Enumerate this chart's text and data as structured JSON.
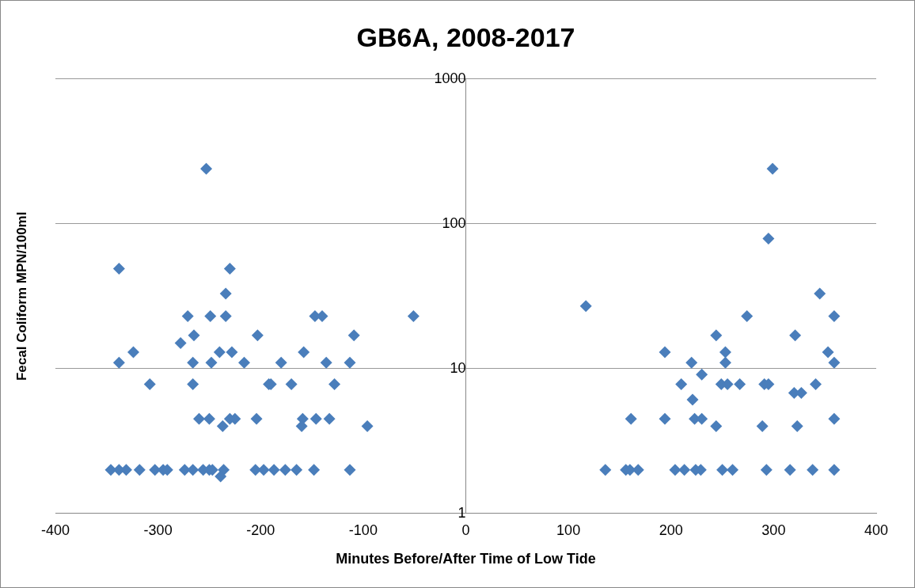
{
  "chart_data": {
    "type": "scatter",
    "title": "GB6A, 2008-2017",
    "xlabel": "Minutes Before/After Time of Low Tide",
    "ylabel": "Fecal Coliform MPN/100ml",
    "xlim": [
      -400,
      400
    ],
    "xticks": [
      -400,
      -300,
      -200,
      -100,
      0,
      100,
      200,
      300,
      400
    ],
    "ylim": [
      1,
      1000
    ],
    "yticks": [
      1,
      10,
      100,
      1000
    ],
    "log": "y",
    "grid": "y",
    "legend": false,
    "marker": "diamond",
    "series": [
      {
        "color": "#4a7ebb",
        "x": [
          -346,
          -338,
          -331,
          -318,
          -303,
          -295,
          -291,
          -274,
          -266,
          -256,
          -250,
          -247,
          -236,
          -205,
          -197,
          -187,
          -176,
          -165,
          -148,
          -113,
          -239,
          -260,
          -250,
          -230,
          -225,
          -204,
          -237,
          -159,
          -146,
          -133,
          -160,
          -96,
          -308,
          -266,
          -192,
          -190,
          -170,
          -128,
          -338,
          -266,
          -248,
          -216,
          -180,
          -136,
          -113,
          -324,
          -240,
          -228,
          -158,
          -278,
          -265,
          -203,
          -109,
          -271,
          -249,
          -234,
          -147,
          -140,
          -51,
          -234,
          -338,
          -230,
          -253,
          299,
          295,
          345,
          117,
          274,
          359,
          244,
          321,
          194,
          253,
          353,
          220,
          253,
          359,
          230,
          210,
          249,
          255,
          267,
          291,
          295,
          341,
          320,
          327,
          221,
          161,
          194,
          223,
          230,
          359,
          244,
          289,
          323,
          136,
          156,
          160,
          168,
          204,
          213,
          224,
          229,
          250,
          260,
          293,
          316,
          338,
          359
        ],
        "values": [
          2,
          2,
          2,
          2,
          2,
          2,
          2,
          2,
          2,
          2,
          2,
          2,
          2,
          2,
          2,
          2,
          2,
          2,
          2,
          2,
          1.8,
          4.5,
          4.5,
          4.5,
          4.5,
          4.5,
          4,
          4.5,
          4.5,
          4.5,
          4,
          4,
          7.8,
          7.8,
          7.8,
          7.8,
          7.8,
          7.8,
          11,
          11,
          11,
          11,
          11,
          11,
          11,
          13,
          13,
          13,
          13,
          15,
          17,
          17,
          17,
          23,
          23,
          23,
          23,
          23,
          23,
          33,
          49,
          49,
          240,
          240,
          79,
          33,
          27,
          23,
          23,
          17,
          17,
          13,
          13,
          13,
          11,
          11,
          11,
          9.1,
          7.8,
          7.8,
          7.8,
          7.8,
          7.8,
          7.8,
          7.8,
          6.8,
          6.8,
          6.1,
          4.5,
          4.5,
          4.5,
          4.5,
          4.5,
          4,
          4,
          4,
          2,
          2,
          2,
          2,
          2,
          2,
          2,
          2,
          2,
          2,
          2,
          2,
          2,
          2
        ]
      }
    ]
  }
}
